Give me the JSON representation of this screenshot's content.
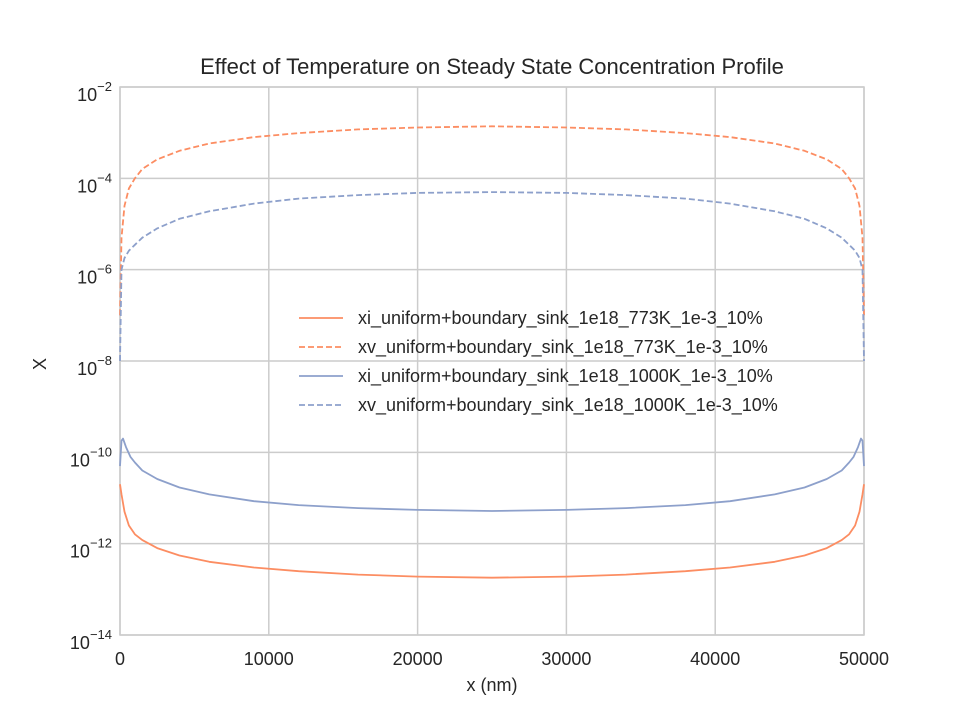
{
  "chart_data": {
    "type": "line",
    "title": "Effect of Temperature on Steady State Concentration Profile",
    "xlabel": "x (nm)",
    "ylabel": "X",
    "xlim": [
      0,
      50000
    ],
    "ylim": [
      1e-14,
      0.01
    ],
    "yscale": "log",
    "grid": true,
    "legend_position": "center-right",
    "x_ticks": [
      0,
      10000,
      20000,
      30000,
      40000,
      50000
    ],
    "x_tick_labels": [
      "0",
      "10000",
      "20000",
      "30000",
      "40000",
      "50000"
    ],
    "y_ticks": [
      {
        "base": "10",
        "exp": "−14",
        "value": 1e-14
      },
      {
        "base": "10",
        "exp": "−12",
        "value": 1e-12
      },
      {
        "base": "10",
        "exp": "−10",
        "value": 1e-10
      },
      {
        "base": "10",
        "exp": "−8",
        "value": 1e-08
      },
      {
        "base": "10",
        "exp": "−6",
        "value": 1e-06
      },
      {
        "base": "10",
        "exp": "−4",
        "value": 0.0001
      },
      {
        "base": "10",
        "exp": "−2",
        "value": 0.01
      }
    ],
    "series": [
      {
        "name": "xi_uniform+boundary_sink_1e18_773K_1e-3_10%",
        "color": "#fc8d62",
        "dash": "solid",
        "x": [
          0,
          100,
          300,
          600,
          1000,
          1500,
          2500,
          4000,
          6000,
          9000,
          12000,
          16000,
          20000,
          25000,
          30000,
          34000,
          38000,
          41000,
          44000,
          46000,
          47500,
          48500,
          49000,
          49400,
          49700,
          49900,
          50000
        ],
        "y": [
          2e-11,
          1.2e-11,
          5e-12,
          2.5e-12,
          1.6e-12,
          1.2e-12,
          8e-13,
          5.5e-13,
          4e-13,
          3e-13,
          2.5e-13,
          2.1e-13,
          1.9e-13,
          1.8e-13,
          1.9e-13,
          2.1e-13,
          2.5e-13,
          3e-13,
          4e-13,
          5.5e-13,
          8e-13,
          1.2e-12,
          1.6e-12,
          2.5e-12,
          5e-12,
          1.2e-11,
          2e-11
        ]
      },
      {
        "name": "xv_uniform+boundary_sink_1e18_773K_1e-3_10%",
        "color": "#fc8d62",
        "dash": "dashed",
        "x": [
          0,
          100,
          300,
          600,
          1000,
          1500,
          2500,
          4000,
          6000,
          9000,
          12000,
          16000,
          20000,
          25000,
          30000,
          34000,
          38000,
          41000,
          44000,
          46000,
          47500,
          48500,
          49000,
          49400,
          49700,
          49900,
          50000
        ],
        "y": [
          1e-07,
          5e-06,
          2.5e-05,
          6e-05,
          0.0001,
          0.00016,
          0.00026,
          0.0004,
          0.00058,
          0.0008,
          0.00098,
          0.00118,
          0.0013,
          0.00138,
          0.0013,
          0.00118,
          0.00098,
          0.0008,
          0.00058,
          0.0004,
          0.00026,
          0.00016,
          0.0001,
          6e-05,
          2.5e-05,
          5e-06,
          1e-07
        ]
      },
      {
        "name": "xi_uniform+boundary_sink_1e18_1000K_1e-3_10%",
        "color": "#8da0cb",
        "dash": "solid",
        "x": [
          0,
          100,
          200,
          400,
          700,
          1000,
          1500,
          2500,
          4000,
          6000,
          9000,
          12000,
          16000,
          20000,
          25000,
          30000,
          34000,
          38000,
          41000,
          44000,
          46000,
          47500,
          48500,
          49000,
          49300,
          49600,
          49800,
          49900,
          50000
        ],
        "y": [
          5e-11,
          1.8e-10,
          2e-10,
          1.3e-10,
          8e-11,
          6e-11,
          4e-11,
          2.6e-11,
          1.7e-11,
          1.2e-11,
          8.5e-12,
          7e-12,
          6e-12,
          5.5e-12,
          5.2e-12,
          5.5e-12,
          6e-12,
          7e-12,
          8.5e-12,
          1.2e-11,
          1.7e-11,
          2.6e-11,
          4e-11,
          6e-11,
          8e-11,
          1.3e-10,
          2e-10,
          1.8e-10,
          5e-11
        ]
      },
      {
        "name": "xv_uniform+boundary_sink_1e18_1000K_1e-3_10%",
        "color": "#8da0cb",
        "dash": "dashed",
        "x": [
          0,
          100,
          300,
          600,
          1000,
          1500,
          2500,
          4000,
          6000,
          9000,
          12000,
          16000,
          20000,
          25000,
          30000,
          34000,
          38000,
          41000,
          44000,
          46000,
          47500,
          48500,
          49000,
          49400,
          49700,
          49900,
          50000
        ],
        "y": [
          1e-08,
          1e-06,
          1.8e-06,
          2.6e-06,
          3.5e-06,
          5e-06,
          8e-06,
          1.3e-05,
          1.9e-05,
          2.8e-05,
          3.6e-05,
          4.3e-05,
          4.8e-05,
          5e-05,
          4.8e-05,
          4.3e-05,
          3.6e-05,
          2.8e-05,
          1.9e-05,
          1.3e-05,
          8e-06,
          5e-06,
          3.5e-06,
          2.6e-06,
          1.8e-06,
          1e-06,
          1e-08
        ]
      }
    ]
  }
}
